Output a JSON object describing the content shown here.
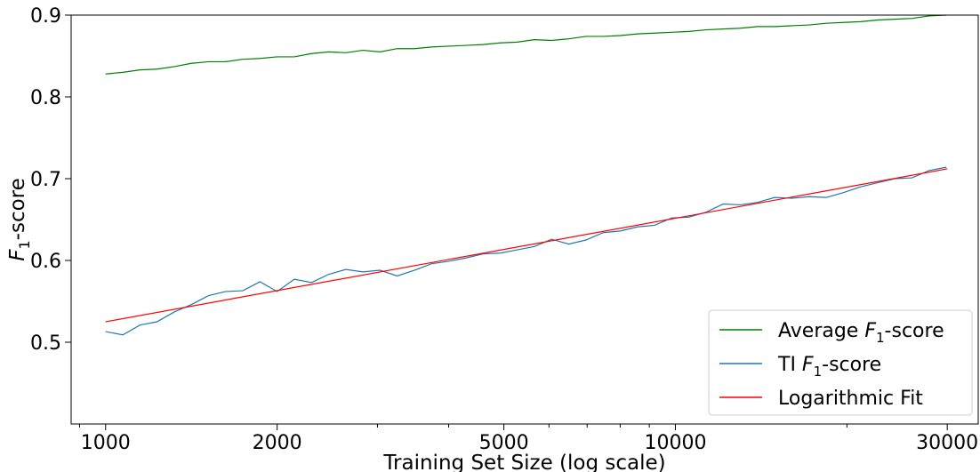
{
  "chart_data": {
    "type": "line",
    "xlabel": "Training Set Size (log scale)",
    "ylabel_base": "F",
    "ylabel_sub": "1",
    "ylabel_suffix": "-score",
    "x_scale": "log",
    "xlim": [
      870,
      34000
    ],
    "ylim": [
      0.4,
      0.9
    ],
    "x_ticks": [
      1000,
      2000,
      5000,
      10000,
      30000
    ],
    "x_tick_labels": [
      "1000",
      "2000",
      "5000",
      "10000",
      "30000"
    ],
    "y_ticks": [
      0.5,
      0.6,
      0.7,
      0.8,
      0.9
    ],
    "y_tick_labels": [
      "0.5",
      "0.6",
      "0.7",
      "0.8",
      "0.9"
    ],
    "grid": false,
    "legend_position": "bottom-right",
    "series": [
      {
        "name": "Average F1-score",
        "label_parts": [
          "Average ",
          "F",
          "1",
          "-score"
        ],
        "color": "#008000",
        "x": [
          1000,
          1072,
          1149,
          1231,
          1320,
          1414,
          1516,
          1625,
          1741,
          1866,
          2000,
          2144,
          2298,
          2463,
          2639,
          2829,
          3032,
          3249,
          3483,
          3733,
          4000,
          4288,
          4595,
          4925,
          5279,
          5658,
          6064,
          6500,
          6966,
          7467,
          8003,
          8578,
          9194,
          9854,
          10562,
          11320,
          12133,
          13005,
          13939,
          14940,
          16012,
          17162,
          18395,
          19716,
          21132,
          22650,
          24276,
          26020,
          27889,
          29892
        ],
        "y": [
          0.828,
          0.83,
          0.833,
          0.834,
          0.837,
          0.841,
          0.843,
          0.843,
          0.846,
          0.847,
          0.849,
          0.849,
          0.853,
          0.855,
          0.854,
          0.857,
          0.855,
          0.859,
          0.859,
          0.861,
          0.862,
          0.863,
          0.864,
          0.866,
          0.867,
          0.87,
          0.869,
          0.871,
          0.874,
          0.874,
          0.875,
          0.877,
          0.878,
          0.879,
          0.88,
          0.882,
          0.883,
          0.884,
          0.886,
          0.886,
          0.887,
          0.888,
          0.89,
          0.891,
          0.892,
          0.894,
          0.895,
          0.896,
          0.899,
          0.9
        ]
      },
      {
        "name": "TI F1-score",
        "label_parts": [
          "TI ",
          "F",
          "1",
          "-score"
        ],
        "color": "#1f77b4",
        "x": [
          1000,
          1072,
          1149,
          1231,
          1320,
          1414,
          1516,
          1625,
          1741,
          1866,
          2000,
          2144,
          2298,
          2463,
          2639,
          2829,
          3032,
          3249,
          3483,
          3733,
          4000,
          4288,
          4595,
          4925,
          5279,
          5658,
          6064,
          6500,
          6966,
          7467,
          8003,
          8578,
          9194,
          9854,
          10562,
          11320,
          12133,
          13005,
          13939,
          14940,
          16012,
          17162,
          18395,
          19716,
          21132,
          22650,
          24276,
          26020,
          27889,
          29892
        ],
        "y": [
          0.513,
          0.509,
          0.521,
          0.525,
          0.537,
          0.546,
          0.557,
          0.562,
          0.563,
          0.574,
          0.562,
          0.577,
          0.573,
          0.583,
          0.589,
          0.586,
          0.588,
          0.581,
          0.588,
          0.596,
          0.599,
          0.603,
          0.608,
          0.609,
          0.613,
          0.617,
          0.626,
          0.62,
          0.625,
          0.634,
          0.636,
          0.641,
          0.643,
          0.652,
          0.653,
          0.659,
          0.669,
          0.668,
          0.671,
          0.677,
          0.676,
          0.678,
          0.677,
          0.683,
          0.69,
          0.695,
          0.7,
          0.701,
          0.71,
          0.714
        ]
      },
      {
        "name": "Logarithmic Fit",
        "label_parts": [
          "Logarithmic Fit"
        ],
        "color": "#ff0000",
        "x": [
          1000,
          30000
        ],
        "y": [
          0.525,
          0.712
        ]
      }
    ]
  }
}
